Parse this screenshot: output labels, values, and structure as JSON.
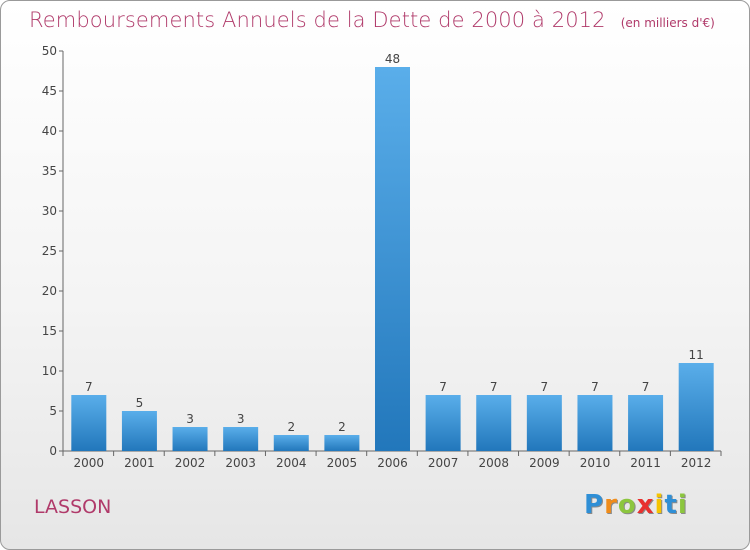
{
  "chart_data": {
    "type": "bar",
    "title": "Remboursements Annuels de la Dette de 2000 à 2012",
    "unit": "(en milliers d'€)",
    "categories": [
      "2000",
      "2001",
      "2002",
      "2003",
      "2004",
      "2005",
      "2006",
      "2007",
      "2008",
      "2009",
      "2010",
      "2011",
      "2012"
    ],
    "values": [
      7,
      5,
      3,
      3,
      2,
      2,
      48,
      7,
      7,
      7,
      7,
      7,
      11
    ],
    "ylim": [
      0,
      50
    ],
    "yticks": [
      0,
      5,
      10,
      15,
      20,
      25,
      30,
      35,
      40,
      45,
      50
    ],
    "grid": false,
    "bar_color_top": "#5aaeea",
    "bar_color_bottom": "#2277bb"
  },
  "commune": "LASSON",
  "brand": {
    "name": "Proxiti",
    "letters": [
      "P",
      "r",
      "o",
      "x",
      "i",
      "t",
      "i"
    ],
    "colors": [
      "#2f8fd6",
      "#f08c1a",
      "#8cc63e",
      "#e8312f",
      "#f5c400",
      "#2f8fd6",
      "#8cc63e"
    ]
  }
}
